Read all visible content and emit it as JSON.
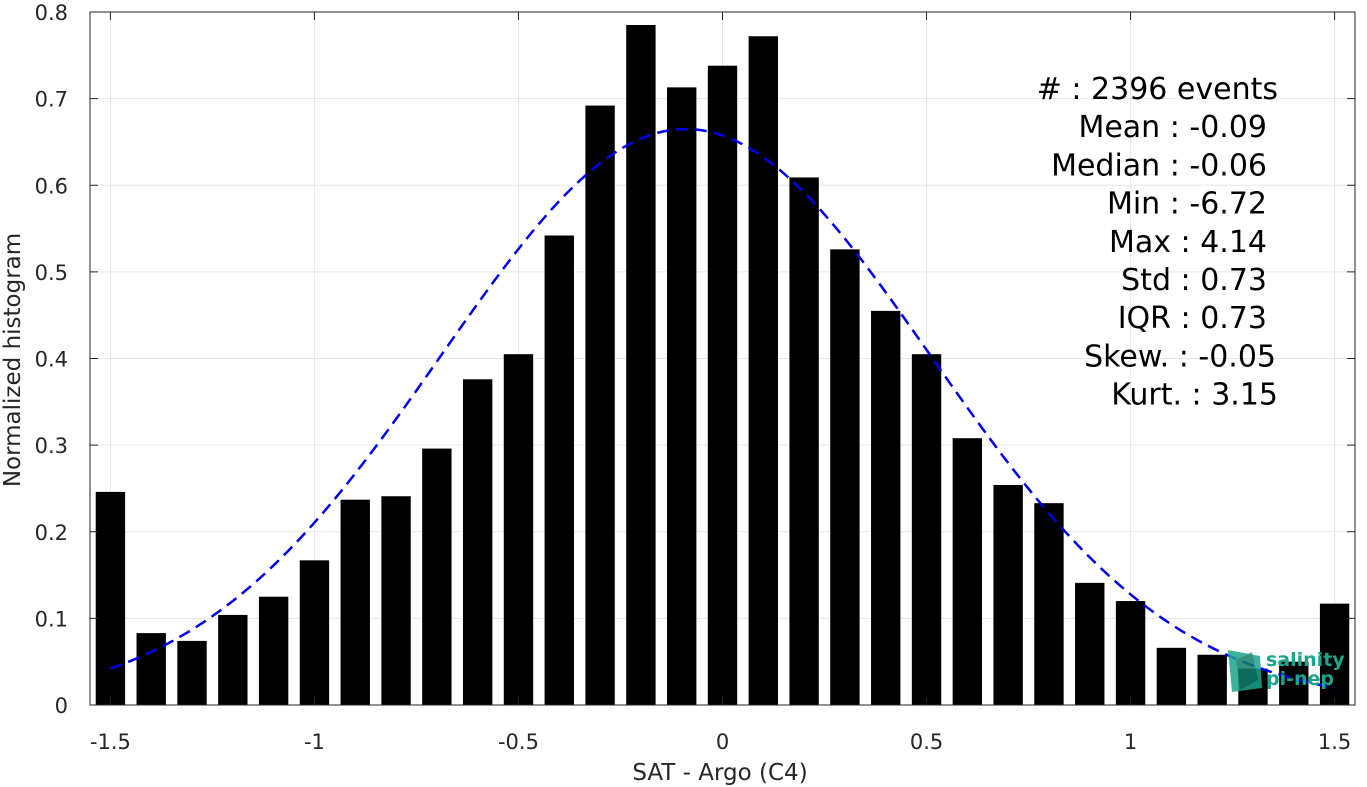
{
  "chart_data": {
    "type": "bar",
    "xlabel": "SAT - Argo (C4)",
    "ylabel": "Normalized histogram",
    "xlim": [
      -1.55,
      1.55
    ],
    "ylim": [
      0,
      0.8
    ],
    "xticks": [
      -1.5,
      -1,
      -0.5,
      0,
      0.5,
      1,
      1.5
    ],
    "xtick_labels": [
      "-1.5",
      "-1",
      "-0.5",
      "0",
      "0.5",
      "1",
      "1.5"
    ],
    "yticks": [
      0,
      0.1,
      0.2,
      0.3,
      0.4,
      0.5,
      0.6,
      0.7,
      0.8
    ],
    "ytick_labels": [
      "0",
      "0.1",
      "0.2",
      "0.3",
      "0.4",
      "0.5",
      "0.6",
      "0.7",
      "0.8"
    ],
    "grid": true,
    "bar_color": "#000000",
    "bin_width": 0.1,
    "bins": [
      {
        "x": -1.5,
        "y": 0.246
      },
      {
        "x": -1.4,
        "y": 0.083
      },
      {
        "x": -1.3,
        "y": 0.074
      },
      {
        "x": -1.2,
        "y": 0.104
      },
      {
        "x": -1.1,
        "y": 0.125
      },
      {
        "x": -1.0,
        "y": 0.167
      },
      {
        "x": -0.9,
        "y": 0.237
      },
      {
        "x": -0.8,
        "y": 0.241
      },
      {
        "x": -0.7,
        "y": 0.296
      },
      {
        "x": -0.6,
        "y": 0.376
      },
      {
        "x": -0.5,
        "y": 0.405
      },
      {
        "x": -0.4,
        "y": 0.542
      },
      {
        "x": -0.3,
        "y": 0.692
      },
      {
        "x": -0.2,
        "y": 0.785
      },
      {
        "x": -0.1,
        "y": 0.713
      },
      {
        "x": 0.0,
        "y": 0.738
      },
      {
        "x": 0.1,
        "y": 0.772
      },
      {
        "x": 0.2,
        "y": 0.609
      },
      {
        "x": 0.3,
        "y": 0.526
      },
      {
        "x": 0.4,
        "y": 0.455
      },
      {
        "x": 0.5,
        "y": 0.405
      },
      {
        "x": 0.6,
        "y": 0.308
      },
      {
        "x": 0.7,
        "y": 0.254
      },
      {
        "x": 0.8,
        "y": 0.233
      },
      {
        "x": 0.9,
        "y": 0.141
      },
      {
        "x": 1.0,
        "y": 0.12
      },
      {
        "x": 1.1,
        "y": 0.066
      },
      {
        "x": 1.2,
        "y": 0.058
      },
      {
        "x": 1.3,
        "y": 0.042
      },
      {
        "x": 1.4,
        "y": 0.05
      },
      {
        "x": 1.5,
        "y": 0.117
      }
    ],
    "fit_curve": {
      "type": "gaussian",
      "style": "dashed",
      "color": "#0000ee",
      "mean": -0.09,
      "sigma": 0.6,
      "x_range": [
        -1.5,
        1.5
      ]
    },
    "stats": [
      {
        "label": "#  : 2396 events"
      },
      {
        "label": "Mean : -0.09"
      },
      {
        "label": "Median : -0.06"
      },
      {
        "label": "Min : -6.72"
      },
      {
        "label": "Max : 4.14"
      },
      {
        "label": "Std : 0.73"
      },
      {
        "label": "IQR : 0.73"
      },
      {
        "label": "Skew. : -0.05"
      },
      {
        "label": "Kurt. : 3.15"
      }
    ]
  },
  "logo": {
    "line1": "salinity",
    "line2": "pi-nep",
    "color_text": "#1aa58c",
    "color_mark": "#1aa58c"
  }
}
